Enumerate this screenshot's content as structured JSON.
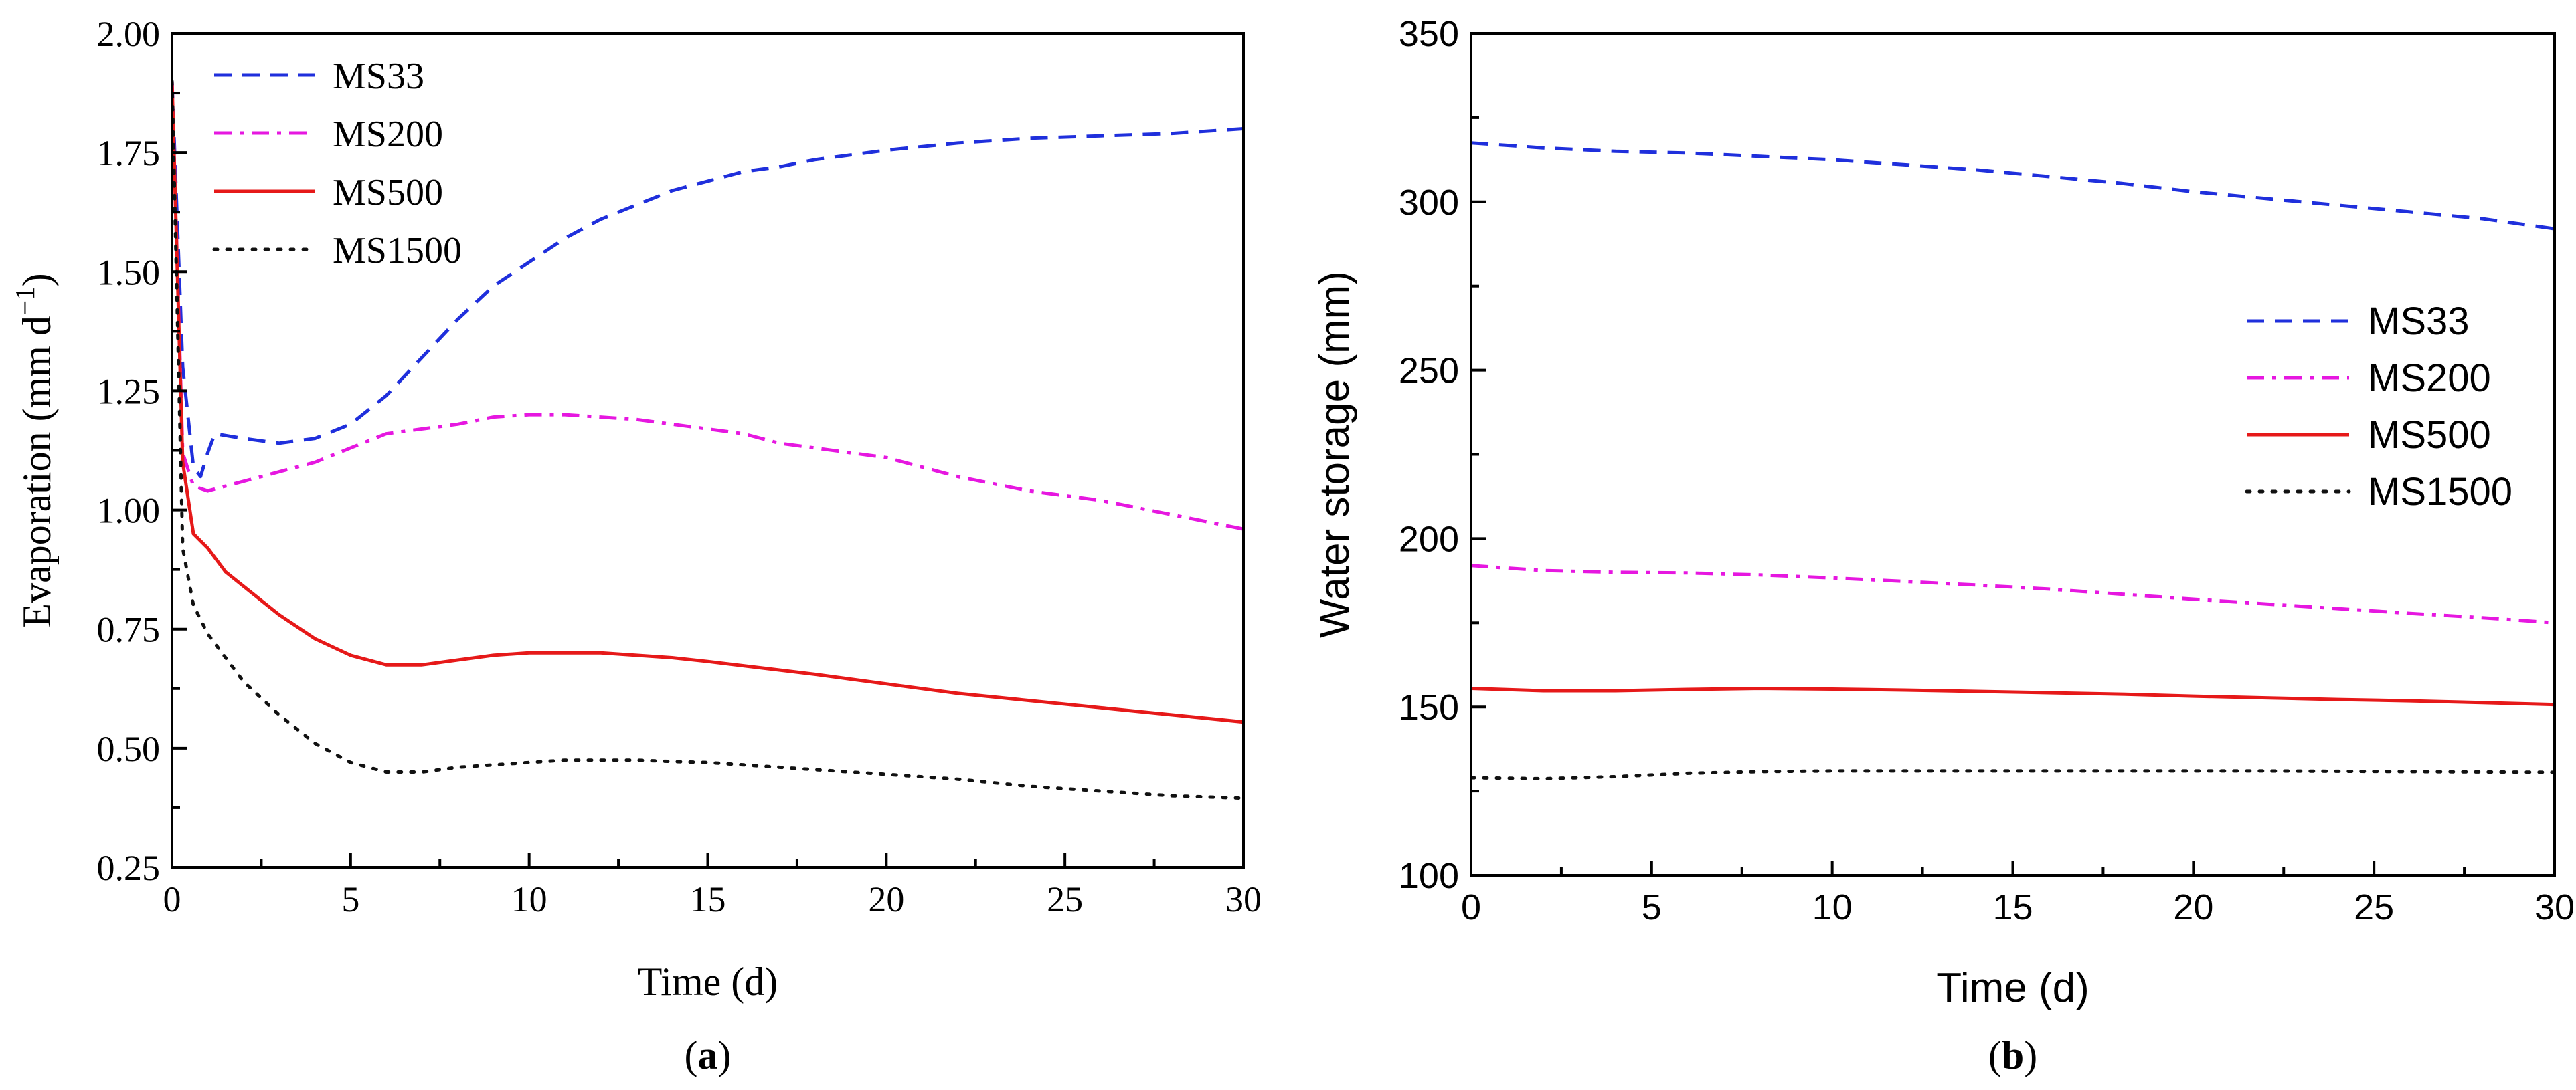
{
  "chart_data": [
    {
      "id": "a",
      "type": "line",
      "panel_label": "(a)",
      "panel_label_letter": "a",
      "xlabel": "Time (d)",
      "ylabel": "Evaporation (mm d⁻¹)",
      "ylabel_base": "Evaporation (mm d",
      "ylabel_sup": "−1",
      "ylabel_close": ")",
      "xlim": [
        0,
        30
      ],
      "ylim": [
        0.25,
        2.0
      ],
      "xticks": [
        0,
        5,
        10,
        15,
        20,
        25,
        30
      ],
      "xtick_labels": [
        "0",
        "5",
        "10",
        "15",
        "20",
        "25",
        "30"
      ],
      "yticks": [
        0.25,
        0.5,
        0.75,
        1.0,
        1.25,
        1.5,
        1.75,
        2.0
      ],
      "ytick_labels": [
        "0.25",
        "0.50",
        "0.75",
        "1.00",
        "1.25",
        "1.50",
        "1.75",
        "2.00"
      ],
      "grid": false,
      "legend_position": "top-left",
      "series": [
        {
          "name": "MS33",
          "color": "#1f2fdc",
          "style": "dashed",
          "x": [
            0,
            0.3,
            0.6,
            0.8,
            1,
            1.2,
            2,
            3,
            4,
            5,
            6,
            7,
            8,
            9,
            10,
            11,
            12,
            13,
            14,
            15,
            16,
            17,
            18,
            19,
            20,
            22,
            24,
            26,
            28,
            30
          ],
          "y": [
            1.9,
            1.3,
            1.09,
            1.07,
            1.12,
            1.16,
            1.15,
            1.14,
            1.15,
            1.18,
            1.24,
            1.32,
            1.4,
            1.47,
            1.52,
            1.57,
            1.61,
            1.64,
            1.67,
            1.69,
            1.71,
            1.72,
            1.735,
            1.745,
            1.755,
            1.77,
            1.78,
            1.785,
            1.79,
            1.8
          ]
        },
        {
          "name": "MS200",
          "color": "#e617e0",
          "style": "dashdot",
          "x": [
            0,
            0.3,
            0.6,
            1,
            2,
            3,
            4,
            5,
            6,
            7,
            8,
            9,
            10,
            11,
            12,
            13,
            14,
            15,
            16,
            17,
            18,
            19,
            20,
            22,
            24,
            26,
            28,
            30
          ],
          "y": [
            1.9,
            1.12,
            1.05,
            1.04,
            1.06,
            1.08,
            1.1,
            1.13,
            1.16,
            1.17,
            1.18,
            1.195,
            1.2,
            1.2,
            1.195,
            1.19,
            1.18,
            1.17,
            1.16,
            1.14,
            1.13,
            1.12,
            1.11,
            1.07,
            1.04,
            1.02,
            0.99,
            0.96
          ]
        },
        {
          "name": "MS500",
          "color": "#e61919",
          "style": "solid",
          "x": [
            0,
            0.3,
            0.6,
            1,
            1.5,
            2,
            3,
            4,
            5,
            6,
            7,
            8,
            9,
            10,
            11,
            12,
            13,
            14,
            15,
            16,
            18,
            20,
            22,
            24,
            26,
            28,
            30
          ],
          "y": [
            1.9,
            1.1,
            0.95,
            0.92,
            0.87,
            0.84,
            0.78,
            0.73,
            0.695,
            0.675,
            0.675,
            0.685,
            0.695,
            0.7,
            0.7,
            0.7,
            0.695,
            0.69,
            0.682,
            0.673,
            0.655,
            0.635,
            0.615,
            0.6,
            0.585,
            0.57,
            0.555
          ]
        },
        {
          "name": "MS1500",
          "color": "#111111",
          "style": "dotted",
          "x": [
            0,
            0.3,
            0.6,
            1,
            1.5,
            2,
            3,
            4,
            5,
            6,
            7,
            8,
            9,
            10,
            11,
            12,
            13,
            14,
            15,
            16,
            18,
            20,
            22,
            24,
            26,
            28,
            30
          ],
          "y": [
            1.9,
            0.92,
            0.8,
            0.74,
            0.69,
            0.64,
            0.57,
            0.51,
            0.47,
            0.45,
            0.45,
            0.46,
            0.465,
            0.47,
            0.475,
            0.475,
            0.475,
            0.472,
            0.47,
            0.465,
            0.455,
            0.445,
            0.435,
            0.42,
            0.41,
            0.4,
            0.395
          ]
        }
      ]
    },
    {
      "id": "b",
      "type": "line",
      "panel_label": "(b)",
      "panel_label_letter": "b",
      "xlabel": "Time (d)",
      "ylabel": "Water storage (mm)",
      "xlim": [
        0,
        30
      ],
      "ylim": [
        100,
        350
      ],
      "xticks": [
        0,
        5,
        10,
        15,
        20,
        25,
        30
      ],
      "xtick_labels": [
        "0",
        "5",
        "10",
        "15",
        "20",
        "25",
        "30"
      ],
      "yticks": [
        100,
        150,
        200,
        250,
        300,
        350
      ],
      "ytick_labels": [
        "100",
        "150",
        "200",
        "250",
        "300",
        "350"
      ],
      "grid": false,
      "legend_position": "center-right",
      "series": [
        {
          "name": "MS33",
          "color": "#1f2fdc",
          "style": "dashed",
          "x": [
            0,
            2,
            4,
            6,
            8,
            10,
            12,
            14,
            16,
            18,
            20,
            22,
            24,
            26,
            28,
            30
          ],
          "y": [
            317.5,
            316,
            315,
            314.5,
            313.5,
            312.5,
            311,
            309.5,
            307.5,
            305.5,
            303,
            301,
            299,
            297,
            295,
            292
          ]
        },
        {
          "name": "MS200",
          "color": "#e617e0",
          "style": "dashdot",
          "x": [
            0,
            2,
            4,
            6,
            8,
            10,
            12,
            14,
            16,
            18,
            20,
            22,
            24,
            26,
            28,
            30
          ],
          "y": [
            192,
            190.5,
            190,
            189.8,
            189.2,
            188.3,
            187.3,
            186.2,
            185,
            183.5,
            182,
            180.6,
            179.2,
            177.8,
            176.5,
            175
          ]
        },
        {
          "name": "MS500",
          "color": "#e61919",
          "style": "solid",
          "x": [
            0,
            2,
            4,
            6,
            8,
            10,
            12,
            14,
            16,
            18,
            20,
            22,
            24,
            26,
            28,
            30
          ],
          "y": [
            155.5,
            154.8,
            154.8,
            155.2,
            155.5,
            155.3,
            155,
            154.6,
            154.2,
            153.8,
            153.2,
            152.7,
            152.2,
            151.8,
            151.3,
            150.7
          ]
        },
        {
          "name": "MS1500",
          "color": "#111111",
          "style": "dotted",
          "x": [
            0,
            2,
            4,
            6,
            8,
            10,
            12,
            14,
            16,
            18,
            20,
            22,
            24,
            26,
            28,
            30
          ],
          "y": [
            129,
            128.7,
            129.3,
            130.3,
            130.8,
            131,
            131,
            131,
            131,
            131,
            131,
            131,
            130.9,
            130.8,
            130.7,
            130.6
          ]
        }
      ]
    }
  ]
}
